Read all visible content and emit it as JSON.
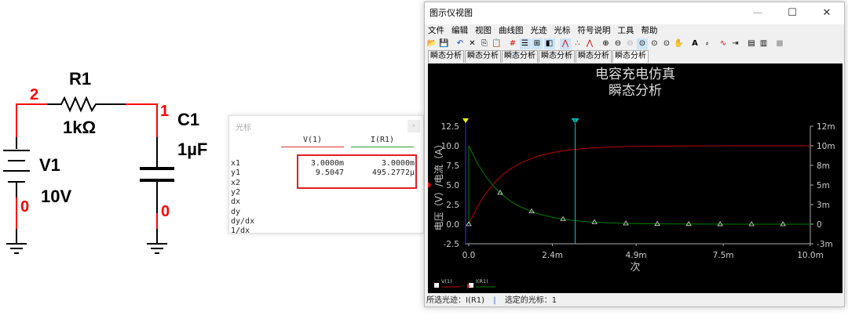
{
  "circuit": {
    "r1_name": "R1",
    "r1_value": "1kΩ",
    "c1_name": "C1",
    "c1_value": "1µF",
    "v1_name": "V1",
    "v1_value": "10V",
    "node_2": "2",
    "node_1": "1",
    "node_0a": "0",
    "node_0b": "0",
    "wire_color": "#ff0000"
  },
  "cursor_window": {
    "title": "光标",
    "close": "×",
    "columns": [
      "V(1)",
      "I(R1)"
    ],
    "column_colors": [
      "#e03030",
      "#30a030"
    ],
    "row_labels": [
      "x1",
      "y1",
      "x2",
      "y2",
      "dx",
      "dy",
      "dy/dx",
      "1/dx"
    ],
    "values": {
      "x1": [
        "3.0000m",
        "3.0000m"
      ],
      "y1": [
        "9.5047",
        "495.2772µ"
      ]
    }
  },
  "window": {
    "title": "图示仪视图",
    "menu": [
      "文件",
      "编辑",
      "视图",
      "曲线图",
      "光迹",
      "光标",
      "符号说明",
      "工具",
      "帮助"
    ],
    "tabs": [
      "瞬态分析",
      "瞬态分析",
      "瞬态分析",
      "瞬态分析",
      "瞬态分析",
      "瞬态分析"
    ],
    "active_tab": 5,
    "status": {
      "selected_trace": "所选光迹：I(R1)",
      "sep": "|",
      "selected_cursor": "选定的光标：1"
    }
  },
  "chart_data": {
    "type": "line",
    "title": "电容充电仿真",
    "subtitle": "瞬态分析",
    "xlabel": "次",
    "ylabel": "电压（V）/电流（A）",
    "xlim": [
      0,
      10
    ],
    "x_unit": "ms",
    "ylim": [
      -2.5,
      12.5
    ],
    "grid": false,
    "legend": "bottom-left",
    "x_ticks": [
      "0.0",
      "2.4m",
      "4.9m",
      "7.5m",
      "10.0m"
    ],
    "x_tick_values": [
      0,
      2.45,
      4.9,
      7.45,
      10
    ],
    "y_ticks_left": [
      "12.5",
      "10.0",
      "7.5",
      "5.0",
      "2.5",
      "0.0",
      "-2.5"
    ],
    "y_ticks_right": [
      "12m",
      "10m",
      "8m",
      "5m",
      "3m",
      "0",
      "-3m"
    ],
    "y_tick_values": [
      12.5,
      10,
      7.5,
      5,
      2.5,
      0,
      -2.5
    ],
    "x": [
      0,
      0.25,
      0.5,
      0.75,
      1,
      1.25,
      1.5,
      2,
      2.5,
      3,
      3.5,
      4,
      4.5,
      5,
      6,
      7,
      8,
      9,
      10
    ],
    "series": [
      {
        "name": "V(1)",
        "color": "#c00000",
        "axis": "left",
        "unit": "V",
        "values": [
          0,
          2.212,
          3.935,
          5.276,
          6.321,
          7.135,
          7.769,
          8.647,
          9.179,
          9.502,
          9.698,
          9.817,
          9.889,
          9.933,
          9.975,
          9.991,
          9.997,
          9.999,
          10
        ]
      },
      {
        "name": "I(R1)",
        "color": "#008000",
        "axis": "right",
        "unit": "mA",
        "values": [
          10,
          7.788,
          6.065,
          4.724,
          3.679,
          2.865,
          2.231,
          1.353,
          0.821,
          0.498,
          0.302,
          0.183,
          0.111,
          0.067,
          0.025,
          0.009,
          0.003,
          0.001,
          0
        ]
      }
    ],
    "cursors": [
      {
        "label": "1",
        "x": 3.0,
        "color": "#00c0c0"
      },
      {
        "label": "2",
        "x": 0,
        "color": "#2020c0"
      }
    ]
  }
}
